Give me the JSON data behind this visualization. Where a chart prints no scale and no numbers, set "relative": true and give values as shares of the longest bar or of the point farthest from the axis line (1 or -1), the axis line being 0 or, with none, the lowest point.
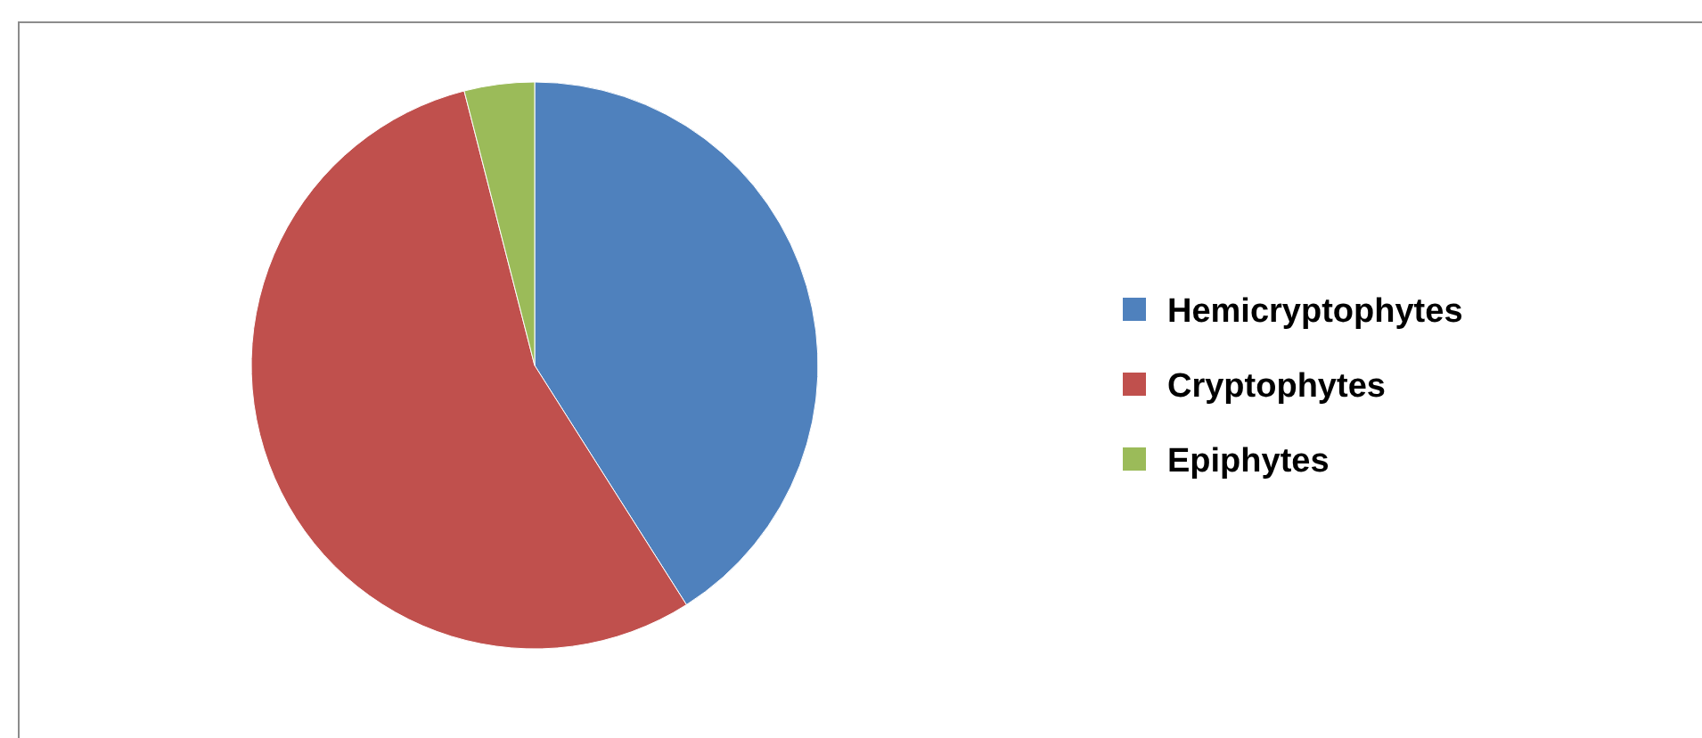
{
  "chart_data": {
    "type": "pie",
    "relative": true,
    "categories": [
      "Hemicryptophytes",
      "Cryptophytes",
      "Epiphytes"
    ],
    "values": [
      41,
      55,
      4
    ],
    "colors": [
      "#4f81bd",
      "#c0504d",
      "#9bbb59"
    ],
    "legend": "right"
  }
}
